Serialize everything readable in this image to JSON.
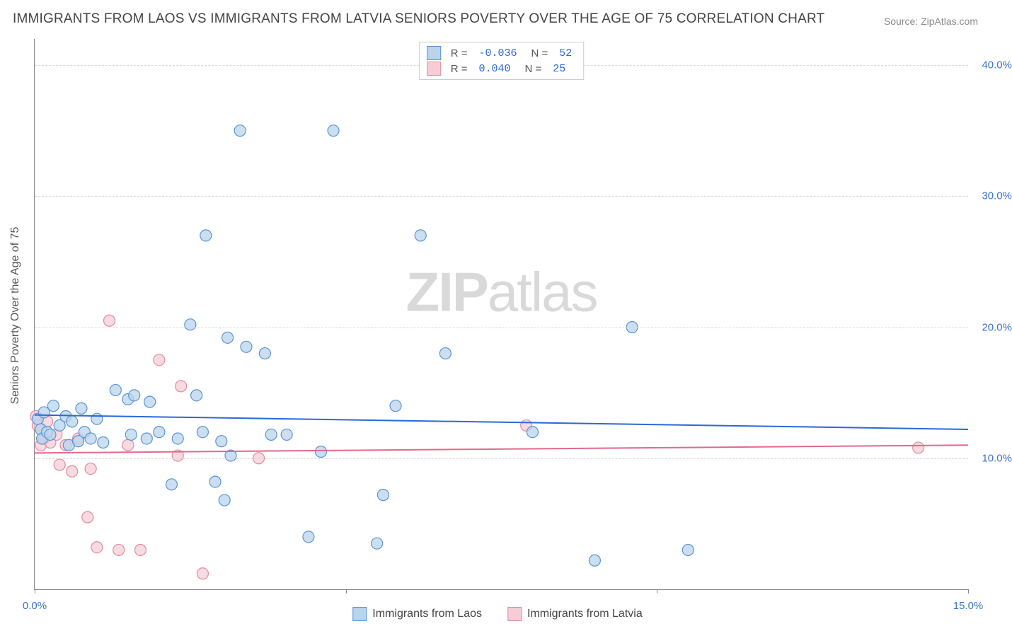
{
  "title": "IMMIGRANTS FROM LAOS VS IMMIGRANTS FROM LATVIA SENIORS POVERTY OVER THE AGE OF 75 CORRELATION CHART",
  "source": "Source: ZipAtlas.com",
  "y_axis_title": "Seniors Poverty Over the Age of 75",
  "watermark_bold": "ZIP",
  "watermark_light": "atlas",
  "chart": {
    "type": "scatter-with-regression",
    "background_color": "#ffffff",
    "grid_color": "#d8d8d8",
    "axis_color": "#888888",
    "tick_label_color": "#3a73c8",
    "tick_fontsize": 15,
    "xlim": [
      0,
      15
    ],
    "ylim": [
      0,
      42
    ],
    "x_ticks": [
      0,
      5,
      10,
      15
    ],
    "x_tick_labels": [
      "0.0%",
      "",
      "",
      "15.0%"
    ],
    "y_ticks": [
      10,
      20,
      30,
      40
    ],
    "y_tick_labels": [
      "10.0%",
      "20.0%",
      "30.0%",
      "40.0%"
    ],
    "marker_radius": 8,
    "marker_stroke_width": 1.2,
    "line_width": 2
  },
  "series": [
    {
      "id": "laos",
      "label": "Immigrants from Laos",
      "fill": "#b9d4ec",
      "stroke": "#5a93d6",
      "line_color": "#2a68d8",
      "r_value": "-0.036",
      "n_value": "52",
      "regression": {
        "y_at_xmin": 13.3,
        "y_at_xmax": 12.2
      },
      "points": [
        [
          0.05,
          13.0
        ],
        [
          0.1,
          12.2
        ],
        [
          0.12,
          11.5
        ],
        [
          0.15,
          13.5
        ],
        [
          0.2,
          12.0
        ],
        [
          0.25,
          11.8
        ],
        [
          0.3,
          14.0
        ],
        [
          0.4,
          12.5
        ],
        [
          0.5,
          13.2
        ],
        [
          0.55,
          11.0
        ],
        [
          0.6,
          12.8
        ],
        [
          0.7,
          11.3
        ],
        [
          0.75,
          13.8
        ],
        [
          0.8,
          12.0
        ],
        [
          0.9,
          11.5
        ],
        [
          1.0,
          13.0
        ],
        [
          1.1,
          11.2
        ],
        [
          1.3,
          15.2
        ],
        [
          1.5,
          14.5
        ],
        [
          1.55,
          11.8
        ],
        [
          1.6,
          14.8
        ],
        [
          1.8,
          11.5
        ],
        [
          1.85,
          14.3
        ],
        [
          2.0,
          12.0
        ],
        [
          2.2,
          8.0
        ],
        [
          2.3,
          11.5
        ],
        [
          2.5,
          20.2
        ],
        [
          2.6,
          14.8
        ],
        [
          2.7,
          12.0
        ],
        [
          2.75,
          27.0
        ],
        [
          2.9,
          8.2
        ],
        [
          3.0,
          11.3
        ],
        [
          3.05,
          6.8
        ],
        [
          3.1,
          19.2
        ],
        [
          3.15,
          10.2
        ],
        [
          3.3,
          35.0
        ],
        [
          3.4,
          18.5
        ],
        [
          3.7,
          18.0
        ],
        [
          3.8,
          11.8
        ],
        [
          4.05,
          11.8
        ],
        [
          4.4,
          4.0
        ],
        [
          4.6,
          10.5
        ],
        [
          4.8,
          35.0
        ],
        [
          5.5,
          3.5
        ],
        [
          5.6,
          7.2
        ],
        [
          5.8,
          14.0
        ],
        [
          6.2,
          27.0
        ],
        [
          6.6,
          18.0
        ],
        [
          8.0,
          12.0
        ],
        [
          9.0,
          2.2
        ],
        [
          9.6,
          20.0
        ],
        [
          10.5,
          3.0
        ]
      ]
    },
    {
      "id": "latvia",
      "label": "Immigrants from Latvia",
      "fill": "#f6cdd7",
      "stroke": "#e28aa0",
      "line_color": "#e06a8a",
      "r_value": "0.040",
      "n_value": "25",
      "regression": {
        "y_at_xmin": 10.4,
        "y_at_xmax": 11.0
      },
      "points": [
        [
          0.02,
          13.2
        ],
        [
          0.05,
          12.5
        ],
        [
          0.1,
          11.0
        ],
        [
          0.15,
          11.5
        ],
        [
          0.2,
          12.8
        ],
        [
          0.25,
          11.2
        ],
        [
          0.35,
          11.8
        ],
        [
          0.4,
          9.5
        ],
        [
          0.5,
          11.0
        ],
        [
          0.6,
          9.0
        ],
        [
          0.7,
          11.5
        ],
        [
          0.85,
          5.5
        ],
        [
          0.9,
          9.2
        ],
        [
          1.0,
          3.2
        ],
        [
          1.2,
          20.5
        ],
        [
          1.35,
          3.0
        ],
        [
          1.5,
          11.0
        ],
        [
          1.7,
          3.0
        ],
        [
          2.0,
          17.5
        ],
        [
          2.3,
          10.2
        ],
        [
          2.35,
          15.5
        ],
        [
          2.7,
          1.2
        ],
        [
          3.6,
          10.0
        ],
        [
          7.9,
          12.5
        ],
        [
          14.2,
          10.8
        ]
      ]
    }
  ],
  "legend_top_labels": {
    "r": "R =",
    "n": "N ="
  }
}
